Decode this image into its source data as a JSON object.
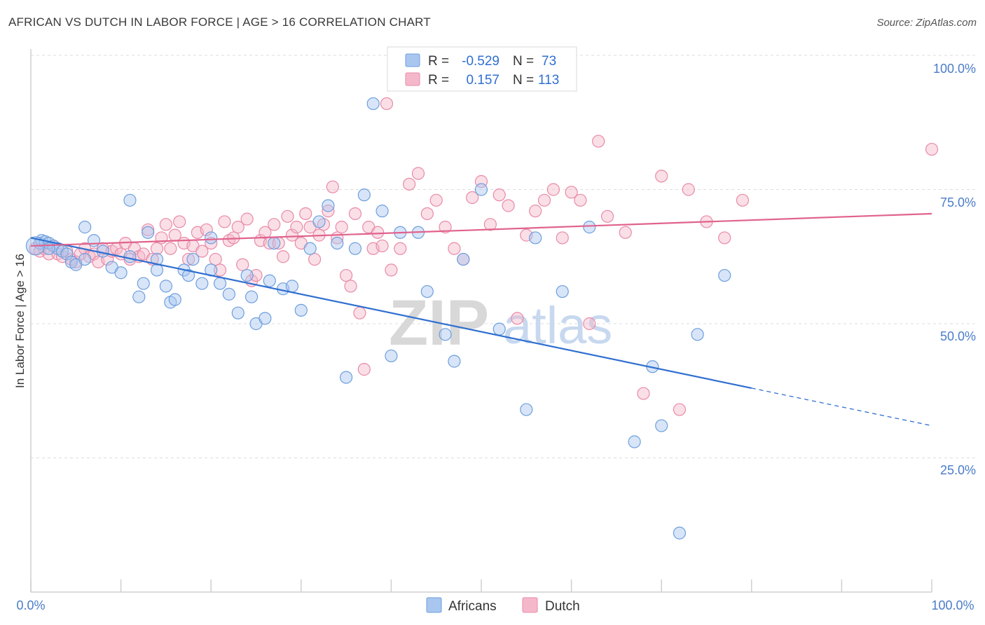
{
  "title": "AFRICAN VS DUTCH IN LABOR FORCE | AGE > 16 CORRELATION CHART",
  "source": "Source: ZipAtlas.com",
  "watermark": {
    "part1": "ZIP",
    "part2": "atlas"
  },
  "colors": {
    "africans_fill": "#a9c6ef",
    "africans_stroke": "#6e9fdd",
    "africans_line": "#2f6fd0",
    "dutch_fill": "#f5b8ca",
    "dutch_stroke": "#e98aa8",
    "dutch_line": "#e0638d",
    "axis_text": "#4a7cc9"
  },
  "legend": {
    "rows": [
      {
        "r_label": "R =",
        "r_value": "-0.529",
        "n_label": "N =",
        "n_value": "73"
      },
      {
        "r_label": "R =",
        "r_value": "0.157",
        "n_label": "N =",
        "n_value": "113"
      }
    ]
  },
  "bottom_legend": {
    "africans": "Africans",
    "dutch": "Dutch"
  },
  "chart_data": {
    "type": "scatter",
    "ylabel": "In Labor Force | Age > 16",
    "xlabel": "",
    "x_tick_labels": [
      "0.0%",
      "100.0%"
    ],
    "y_tick_labels": [
      "100.0%",
      "75.0%",
      "50.0%",
      "25.0%"
    ],
    "xlim": [
      0,
      100
    ],
    "ylim": [
      0,
      100
    ],
    "grid": true,
    "series": [
      {
        "name": "Africans",
        "r": -0.529,
        "n": 73,
        "trend": {
          "x0": 0,
          "y0": 66.0,
          "x1": 80,
          "y1": 38.0,
          "dash_x1": 100,
          "dash_y1": 31.0
        },
        "points": [
          [
            1,
            65
          ],
          [
            1.2,
            65.5
          ],
          [
            1.6,
            65.3
          ],
          [
            2,
            65
          ],
          [
            2.5,
            64.5
          ],
          [
            3,
            64
          ],
          [
            3.5,
            63.5
          ],
          [
            4,
            63
          ],
          [
            4.5,
            61.5
          ],
          [
            5,
            61
          ],
          [
            6,
            62
          ],
          [
            7,
            65.5
          ],
          [
            8,
            63.5
          ],
          [
            9,
            60.5
          ],
          [
            10,
            59.5
          ],
          [
            11,
            62.5
          ],
          [
            12,
            55
          ],
          [
            12.5,
            57.5
          ],
          [
            13,
            67
          ],
          [
            14,
            62
          ],
          [
            14,
            60
          ],
          [
            15,
            57
          ],
          [
            15.5,
            54
          ],
          [
            16,
            54.5
          ],
          [
            17,
            60
          ],
          [
            17.5,
            59
          ],
          [
            18,
            62
          ],
          [
            19,
            57.5
          ],
          [
            20,
            60
          ],
          [
            20,
            66
          ],
          [
            21,
            57.5
          ],
          [
            22,
            55.5
          ],
          [
            23,
            52
          ],
          [
            24,
            59
          ],
          [
            24.5,
            55
          ],
          [
            25,
            50
          ],
          [
            26,
            51
          ],
          [
            26.5,
            58
          ],
          [
            27,
            65
          ],
          [
            28,
            56.5
          ],
          [
            29,
            57
          ],
          [
            30,
            52.5
          ],
          [
            31,
            64
          ],
          [
            32,
            69
          ],
          [
            33,
            72
          ],
          [
            34,
            65
          ],
          [
            35,
            40
          ],
          [
            36,
            64
          ],
          [
            37,
            74
          ],
          [
            38,
            91
          ],
          [
            39,
            71
          ],
          [
            40,
            44
          ],
          [
            41,
            67
          ],
          [
            43,
            67
          ],
          [
            44,
            56
          ],
          [
            46,
            48
          ],
          [
            47,
            43
          ],
          [
            48,
            62
          ],
          [
            50,
            75
          ],
          [
            52,
            49
          ],
          [
            55,
            34
          ],
          [
            56,
            66
          ],
          [
            59,
            56
          ],
          [
            62,
            68
          ],
          [
            67,
            28
          ],
          [
            69,
            42
          ],
          [
            70,
            31
          ],
          [
            72,
            11
          ],
          [
            74,
            48
          ],
          [
            77,
            59
          ],
          [
            6,
            68
          ],
          [
            11,
            73
          ],
          [
            2,
            64
          ]
        ]
      },
      {
        "name": "Dutch",
        "r": 0.157,
        "n": 113,
        "trend": {
          "x0": 0,
          "y0": 64.5,
          "x1": 100,
          "y1": 70.5
        },
        "points": [
          [
            0.5,
            64
          ],
          [
            1,
            63.5
          ],
          [
            1.5,
            64
          ],
          [
            2,
            63
          ],
          [
            2.5,
            64.5
          ],
          [
            3,
            63
          ],
          [
            3.5,
            62.5
          ],
          [
            4,
            63.5
          ],
          [
            4.5,
            62
          ],
          [
            5,
            61.5
          ],
          [
            5.5,
            63
          ],
          [
            6,
            64
          ],
          [
            6.5,
            62.5
          ],
          [
            7,
            63
          ],
          [
            7.5,
            61.5
          ],
          [
            8,
            64
          ],
          [
            8.5,
            62
          ],
          [
            9,
            63.5
          ],
          [
            9.5,
            64
          ],
          [
            10,
            63
          ],
          [
            10.5,
            65
          ],
          [
            11,
            62
          ],
          [
            11.5,
            64
          ],
          [
            12,
            62.5
          ],
          [
            12.5,
            63
          ],
          [
            13,
            67.5
          ],
          [
            13.5,
            62
          ],
          [
            14,
            64
          ],
          [
            14.5,
            66
          ],
          [
            15,
            68.5
          ],
          [
            15.5,
            64
          ],
          [
            16,
            66.5
          ],
          [
            16.5,
            69
          ],
          [
            17,
            65
          ],
          [
            17.5,
            62
          ],
          [
            18,
            64.5
          ],
          [
            18.5,
            67
          ],
          [
            19,
            63.5
          ],
          [
            19.5,
            67.5
          ],
          [
            20,
            65
          ],
          [
            20.5,
            62
          ],
          [
            21,
            60
          ],
          [
            21.5,
            69
          ],
          [
            22,
            65.5
          ],
          [
            22.5,
            66
          ],
          [
            23,
            68
          ],
          [
            23.5,
            61
          ],
          [
            24,
            69.5
          ],
          [
            24.5,
            58
          ],
          [
            25,
            59
          ],
          [
            25.5,
            65.5
          ],
          [
            26,
            67
          ],
          [
            26.5,
            65
          ],
          [
            27,
            68.5
          ],
          [
            27.5,
            65
          ],
          [
            28,
            62.5
          ],
          [
            28.5,
            70
          ],
          [
            29,
            66.5
          ],
          [
            29.5,
            68
          ],
          [
            30,
            65
          ],
          [
            30.5,
            70.5
          ],
          [
            31,
            68
          ],
          [
            31.5,
            62
          ],
          [
            32,
            66.5
          ],
          [
            32.5,
            68.5
          ],
          [
            33,
            71
          ],
          [
            33.5,
            75.5
          ],
          [
            34,
            66
          ],
          [
            34.5,
            68
          ],
          [
            35,
            59
          ],
          [
            35.5,
            57
          ],
          [
            36,
            70.5
          ],
          [
            36.5,
            52
          ],
          [
            37,
            41.5
          ],
          [
            37.5,
            68
          ],
          [
            38,
            64
          ],
          [
            38.5,
            67
          ],
          [
            39,
            64.5
          ],
          [
            39.5,
            91
          ],
          [
            40,
            60
          ],
          [
            41,
            64
          ],
          [
            42,
            76
          ],
          [
            43,
            78
          ],
          [
            44,
            70.5
          ],
          [
            45,
            73
          ],
          [
            46,
            68
          ],
          [
            47,
            64
          ],
          [
            48,
            62
          ],
          [
            49,
            73.5
          ],
          [
            50,
            76.5
          ],
          [
            51,
            68.5
          ],
          [
            52,
            74
          ],
          [
            53,
            72
          ],
          [
            54,
            51
          ],
          [
            55,
            66.5
          ],
          [
            56,
            71
          ],
          [
            57,
            73
          ],
          [
            58,
            75
          ],
          [
            59,
            66
          ],
          [
            60,
            74.5
          ],
          [
            61,
            73
          ],
          [
            62,
            50
          ],
          [
            63,
            84
          ],
          [
            64,
            70
          ],
          [
            66,
            67
          ],
          [
            68,
            37
          ],
          [
            70,
            77.5
          ],
          [
            72,
            34
          ],
          [
            73,
            75
          ],
          [
            75,
            69
          ],
          [
            77,
            66
          ],
          [
            79,
            73
          ],
          [
            100,
            82.5
          ]
        ]
      }
    ]
  }
}
